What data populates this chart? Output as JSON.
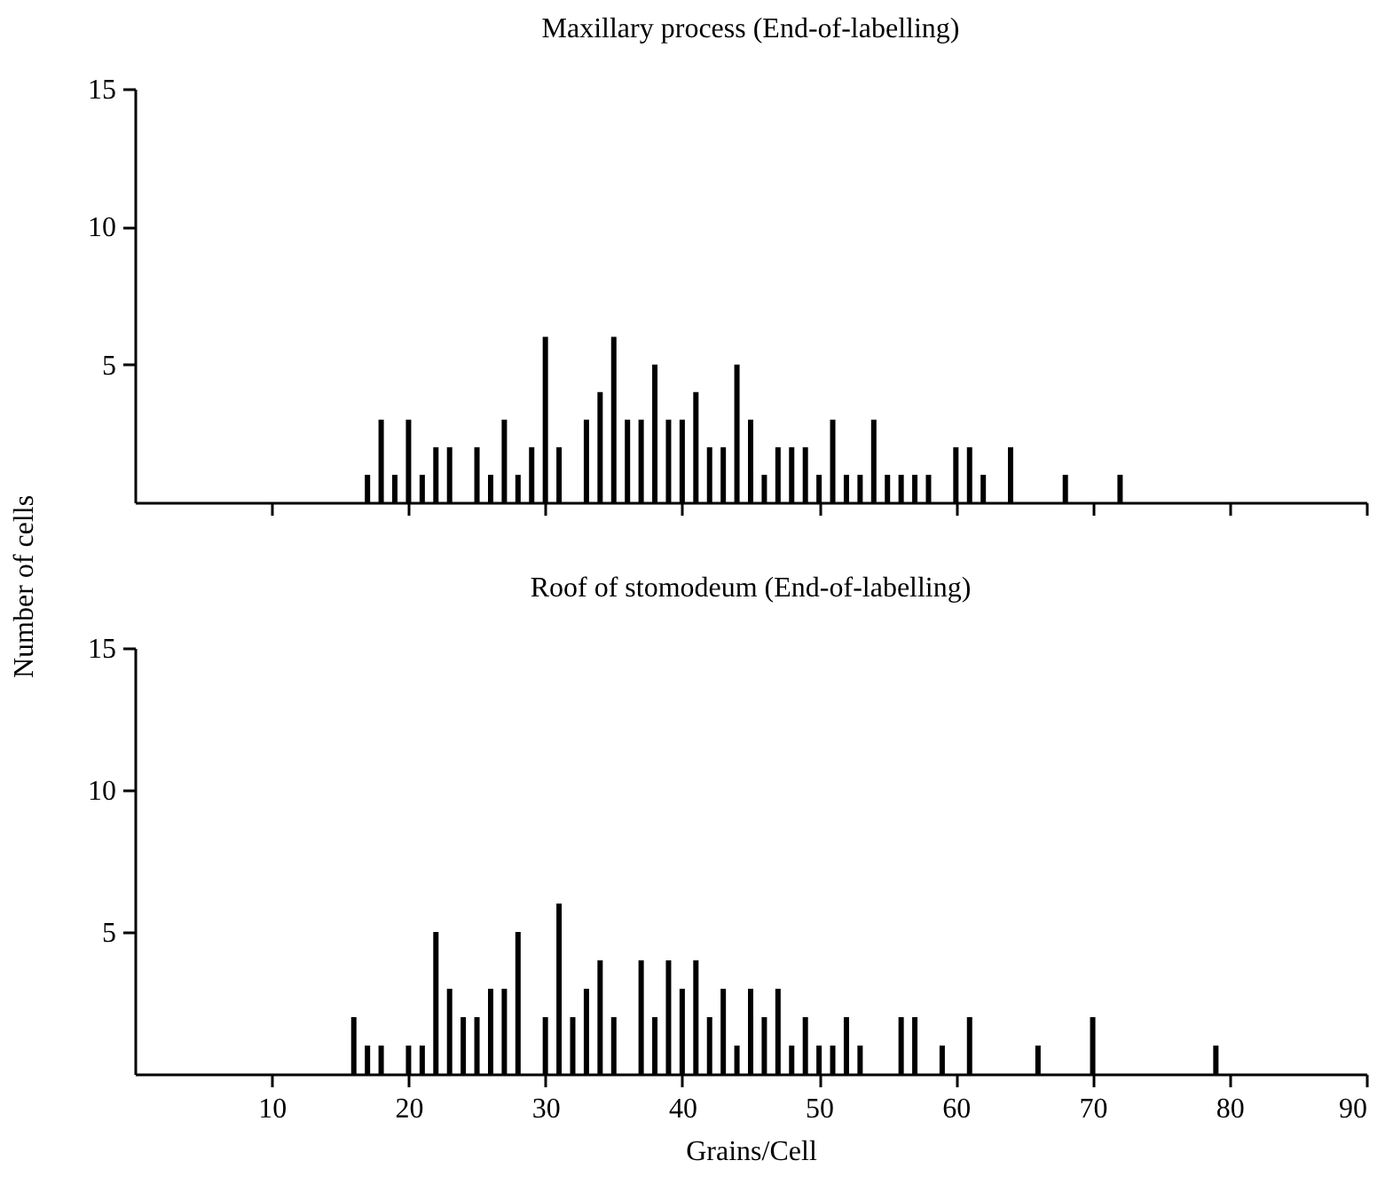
{
  "chart_data": [
    {
      "type": "bar",
      "title": "Maxillary process (End-of-labelling)",
      "x": [
        17,
        18,
        19,
        20,
        21,
        22,
        23,
        25,
        26,
        27,
        28,
        29,
        30,
        31,
        33,
        34,
        35,
        36,
        37,
        38,
        39,
        40,
        41,
        42,
        43,
        44,
        45,
        46,
        47,
        48,
        49,
        50,
        51,
        52,
        53,
        54,
        55,
        56,
        57,
        58,
        60,
        61,
        62,
        64,
        68,
        72
      ],
      "values": [
        1,
        3,
        1,
        3,
        1,
        2,
        2,
        2,
        1,
        3,
        1,
        2,
        6,
        2,
        3,
        4,
        6,
        3,
        3,
        5,
        3,
        3,
        4,
        2,
        2,
        5,
        3,
        1,
        2,
        2,
        2,
        1,
        3,
        1,
        1,
        3,
        1,
        1,
        1,
        1,
        2,
        2,
        1,
        2,
        1,
        1
      ],
      "color": "#000000",
      "xlim": [
        0,
        90
      ],
      "xticks": [
        10,
        20,
        30,
        40,
        50,
        60,
        70,
        80,
        90
      ],
      "ylim": [
        0,
        15
      ],
      "yticks": [
        5,
        10,
        15
      ],
      "tick_labels": "y",
      "ylabel": "Number of cells"
    },
    {
      "type": "bar",
      "title": "Roof of stomodeum (End-of-labelling)",
      "xlabel": "Grains/Cell",
      "x": [
        16,
        17,
        18,
        20,
        21,
        22,
        23,
        24,
        25,
        26,
        27,
        28,
        30,
        31,
        32,
        33,
        34,
        35,
        37,
        38,
        39,
        40,
        41,
        42,
        43,
        44,
        45,
        46,
        47,
        48,
        49,
        50,
        51,
        52,
        53,
        56,
        57,
        59,
        61,
        66,
        70,
        79
      ],
      "values": [
        2,
        1,
        1,
        1,
        1,
        5,
        3,
        2,
        2,
        3,
        3,
        5,
        2,
        6,
        2,
        3,
        4,
        2,
        4,
        2,
        4,
        3,
        4,
        2,
        3,
        1,
        3,
        2,
        3,
        1,
        2,
        1,
        1,
        2,
        1,
        2,
        2,
        1,
        2,
        1,
        2,
        1
      ],
      "color": "#000000",
      "xlim": [
        0,
        90
      ],
      "xticks": [
        10,
        20,
        30,
        40,
        50,
        60,
        70,
        80,
        90
      ],
      "ylim": [
        0,
        15
      ],
      "yticks": [
        5,
        10,
        15
      ]
    }
  ]
}
